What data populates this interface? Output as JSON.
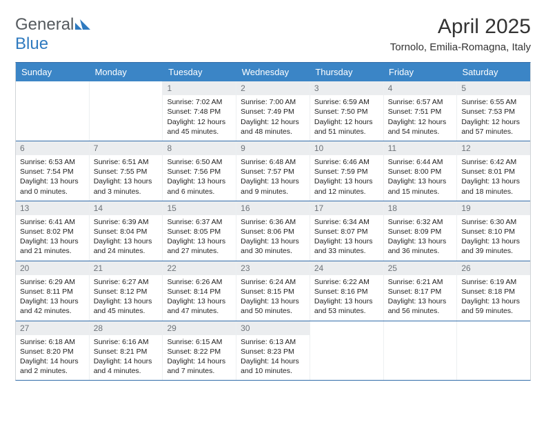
{
  "brand": {
    "name_a": "General",
    "name_b": "Blue"
  },
  "title": "April 2025",
  "location": "Tornolo, Emilia-Romagna, Italy",
  "colors": {
    "header_bg": "#3b85c6",
    "header_text": "#ffffff",
    "daynum_bg": "#ebedef",
    "daynum_text": "#6c7278",
    "week_divider": "#2f6aa8",
    "logo_gray": "#555a5e",
    "logo_blue": "#2f7abf"
  },
  "day_names": [
    "Sunday",
    "Monday",
    "Tuesday",
    "Wednesday",
    "Thursday",
    "Friday",
    "Saturday"
  ],
  "first_weekday_index": 2,
  "days": [
    {
      "n": 1,
      "sunrise": "7:02 AM",
      "sunset": "7:48 PM",
      "daylight": "12 hours and 45 minutes."
    },
    {
      "n": 2,
      "sunrise": "7:00 AM",
      "sunset": "7:49 PM",
      "daylight": "12 hours and 48 minutes."
    },
    {
      "n": 3,
      "sunrise": "6:59 AM",
      "sunset": "7:50 PM",
      "daylight": "12 hours and 51 minutes."
    },
    {
      "n": 4,
      "sunrise": "6:57 AM",
      "sunset": "7:51 PM",
      "daylight": "12 hours and 54 minutes."
    },
    {
      "n": 5,
      "sunrise": "6:55 AM",
      "sunset": "7:53 PM",
      "daylight": "12 hours and 57 minutes."
    },
    {
      "n": 6,
      "sunrise": "6:53 AM",
      "sunset": "7:54 PM",
      "daylight": "13 hours and 0 minutes."
    },
    {
      "n": 7,
      "sunrise": "6:51 AM",
      "sunset": "7:55 PM",
      "daylight": "13 hours and 3 minutes."
    },
    {
      "n": 8,
      "sunrise": "6:50 AM",
      "sunset": "7:56 PM",
      "daylight": "13 hours and 6 minutes."
    },
    {
      "n": 9,
      "sunrise": "6:48 AM",
      "sunset": "7:57 PM",
      "daylight": "13 hours and 9 minutes."
    },
    {
      "n": 10,
      "sunrise": "6:46 AM",
      "sunset": "7:59 PM",
      "daylight": "13 hours and 12 minutes."
    },
    {
      "n": 11,
      "sunrise": "6:44 AM",
      "sunset": "8:00 PM",
      "daylight": "13 hours and 15 minutes."
    },
    {
      "n": 12,
      "sunrise": "6:42 AM",
      "sunset": "8:01 PM",
      "daylight": "13 hours and 18 minutes."
    },
    {
      "n": 13,
      "sunrise": "6:41 AM",
      "sunset": "8:02 PM",
      "daylight": "13 hours and 21 minutes."
    },
    {
      "n": 14,
      "sunrise": "6:39 AM",
      "sunset": "8:04 PM",
      "daylight": "13 hours and 24 minutes."
    },
    {
      "n": 15,
      "sunrise": "6:37 AM",
      "sunset": "8:05 PM",
      "daylight": "13 hours and 27 minutes."
    },
    {
      "n": 16,
      "sunrise": "6:36 AM",
      "sunset": "8:06 PM",
      "daylight": "13 hours and 30 minutes."
    },
    {
      "n": 17,
      "sunrise": "6:34 AM",
      "sunset": "8:07 PM",
      "daylight": "13 hours and 33 minutes."
    },
    {
      "n": 18,
      "sunrise": "6:32 AM",
      "sunset": "8:09 PM",
      "daylight": "13 hours and 36 minutes."
    },
    {
      "n": 19,
      "sunrise": "6:30 AM",
      "sunset": "8:10 PM",
      "daylight": "13 hours and 39 minutes."
    },
    {
      "n": 20,
      "sunrise": "6:29 AM",
      "sunset": "8:11 PM",
      "daylight": "13 hours and 42 minutes."
    },
    {
      "n": 21,
      "sunrise": "6:27 AM",
      "sunset": "8:12 PM",
      "daylight": "13 hours and 45 minutes."
    },
    {
      "n": 22,
      "sunrise": "6:26 AM",
      "sunset": "8:14 PM",
      "daylight": "13 hours and 47 minutes."
    },
    {
      "n": 23,
      "sunrise": "6:24 AM",
      "sunset": "8:15 PM",
      "daylight": "13 hours and 50 minutes."
    },
    {
      "n": 24,
      "sunrise": "6:22 AM",
      "sunset": "8:16 PM",
      "daylight": "13 hours and 53 minutes."
    },
    {
      "n": 25,
      "sunrise": "6:21 AM",
      "sunset": "8:17 PM",
      "daylight": "13 hours and 56 minutes."
    },
    {
      "n": 26,
      "sunrise": "6:19 AM",
      "sunset": "8:18 PM",
      "daylight": "13 hours and 59 minutes."
    },
    {
      "n": 27,
      "sunrise": "6:18 AM",
      "sunset": "8:20 PM",
      "daylight": "14 hours and 2 minutes."
    },
    {
      "n": 28,
      "sunrise": "6:16 AM",
      "sunset": "8:21 PM",
      "daylight": "14 hours and 4 minutes."
    },
    {
      "n": 29,
      "sunrise": "6:15 AM",
      "sunset": "8:22 PM",
      "daylight": "14 hours and 7 minutes."
    },
    {
      "n": 30,
      "sunrise": "6:13 AM",
      "sunset": "8:23 PM",
      "daylight": "14 hours and 10 minutes."
    }
  ],
  "labels": {
    "sunrise": "Sunrise: ",
    "sunset": "Sunset: ",
    "daylight": "Daylight: "
  }
}
